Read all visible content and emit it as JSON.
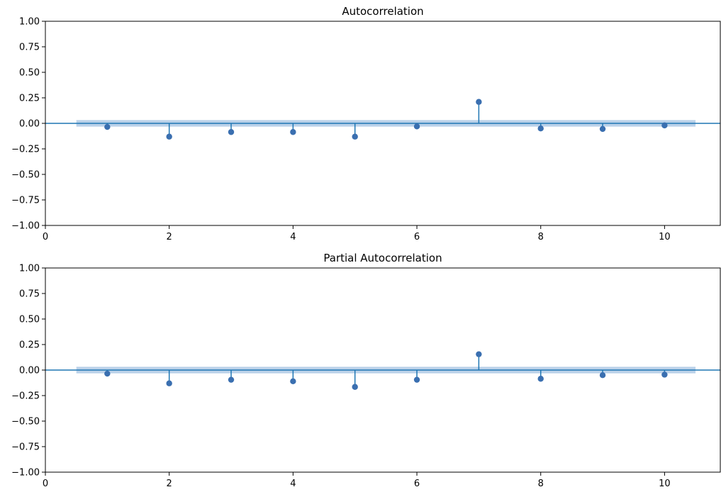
{
  "chart_data": [
    {
      "type": "stem",
      "title": "Autocorrelation",
      "xlabel": "",
      "ylabel": "",
      "xlim": [
        0,
        10.9
      ],
      "ylim": [
        -1.0,
        1.0
      ],
      "x_ticks": [
        "0",
        "2",
        "4",
        "6",
        "8",
        "10"
      ],
      "y_ticks": [
        "−1.00",
        "−0.75",
        "−0.50",
        "−0.25",
        "0.00",
        "0.25",
        "0.50",
        "0.75",
        "1.00"
      ],
      "grid": false,
      "confidence_band": {
        "x": [
          0.5,
          10.5
        ],
        "lower": -0.032,
        "upper": 0.032
      },
      "x": [
        1,
        2,
        3,
        4,
        5,
        6,
        7,
        8,
        9,
        10
      ],
      "values": [
        -0.035,
        -0.13,
        -0.085,
        -0.085,
        -0.13,
        -0.03,
        0.21,
        -0.05,
        -0.055,
        -0.02
      ]
    },
    {
      "type": "stem",
      "title": "Partial Autocorrelation",
      "xlabel": "",
      "ylabel": "",
      "xlim": [
        0,
        10.9
      ],
      "ylim": [
        -1.0,
        1.0
      ],
      "x_ticks": [
        "0",
        "2",
        "4",
        "6",
        "8",
        "10"
      ],
      "y_ticks": [
        "−1.00",
        "−0.75",
        "−0.50",
        "−0.25",
        "0.00",
        "0.25",
        "0.50",
        "0.75",
        "1.00"
      ],
      "grid": false,
      "confidence_band": {
        "x": [
          0.5,
          10.5
        ],
        "lower": -0.032,
        "upper": 0.032
      },
      "x": [
        1,
        2,
        3,
        4,
        5,
        6,
        7,
        8,
        9,
        10
      ],
      "values": [
        -0.035,
        -0.13,
        -0.095,
        -0.11,
        -0.165,
        -0.095,
        0.155,
        -0.085,
        -0.05,
        -0.045
      ]
    }
  ],
  "colors": {
    "stem": "#1f77b4",
    "marker": "#3a6fb0",
    "band": "#a9c6e3",
    "axis": "#000000"
  }
}
